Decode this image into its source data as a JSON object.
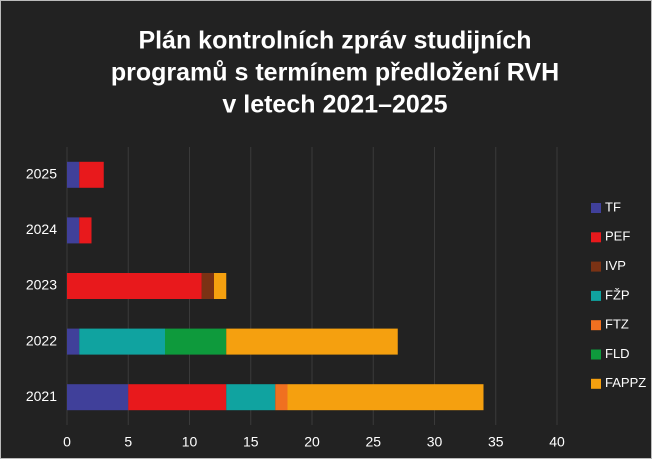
{
  "chart_data": {
    "type": "stacked_barh",
    "title": [
      "Plán kontrolních zpráv studijních",
      "programů s termínem předložení RVH",
      "v letech 2021–2025"
    ],
    "categories": [
      "2025",
      "2024",
      "2023",
      "2022",
      "2021"
    ],
    "series": [
      {
        "name": "TF",
        "color": "#40409a",
        "values": [
          1,
          1,
          0,
          1,
          5
        ]
      },
      {
        "name": "PEF",
        "color": "#e8191c",
        "values": [
          2,
          1,
          11,
          0,
          8
        ]
      },
      {
        "name": "IVP",
        "color": "#7a3214",
        "values": [
          0,
          0,
          1,
          0,
          0
        ]
      },
      {
        "name": "FŽP",
        "color": "#10a3a0",
        "values": [
          0,
          0,
          0,
          7,
          4
        ]
      },
      {
        "name": "FTZ",
        "color": "#f07020",
        "values": [
          0,
          0,
          0,
          0,
          1
        ]
      },
      {
        "name": "FLD",
        "color": "#0e9a3c",
        "values": [
          0,
          0,
          0,
          5,
          0
        ]
      },
      {
        "name": "FAPPZ",
        "color": "#f5a00f",
        "values": [
          0,
          0,
          1,
          14,
          16
        ]
      }
    ],
    "xlim": [
      0,
      40
    ],
    "xticks": [
      0,
      5,
      10,
      15,
      20,
      25,
      30,
      35,
      40
    ],
    "grid": true,
    "legend": "right"
  }
}
